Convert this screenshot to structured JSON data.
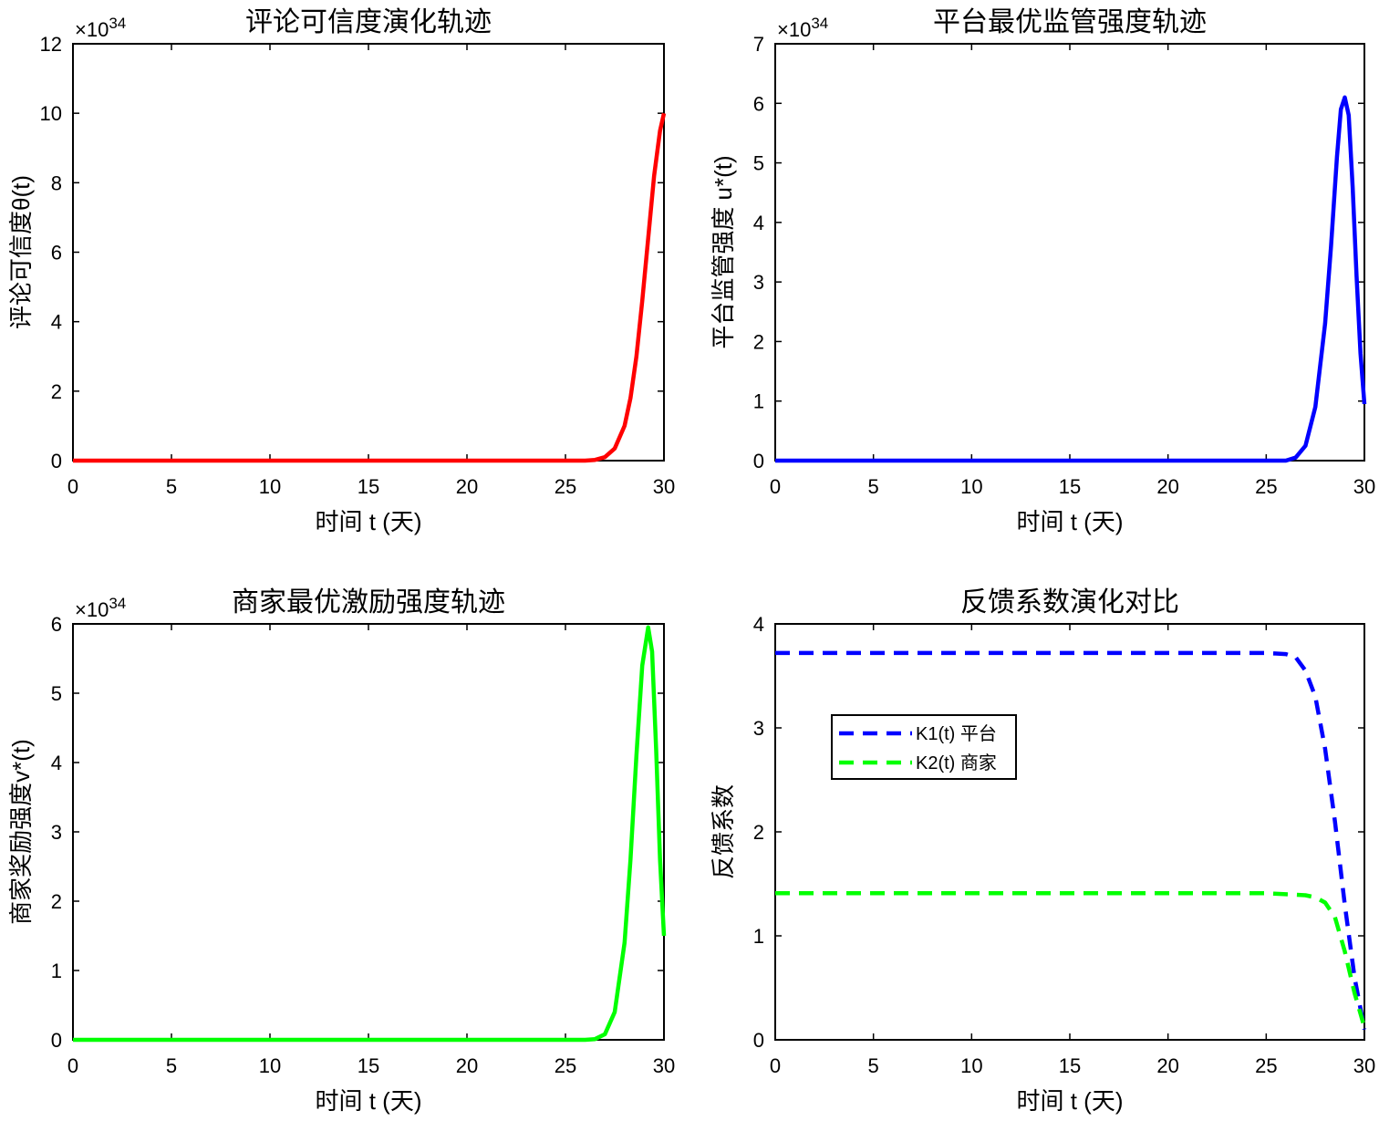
{
  "chart_data": [
    {
      "type": "line",
      "title": "评论可信度演化轨迹",
      "xlabel": "时间 t (天)",
      "ylabel": "评论可信度θ(t)",
      "xlim": [
        0,
        30
      ],
      "ylim": [
        0,
        12
      ],
      "exponent_label": "×10",
      "exponent_power": "34",
      "xticks": [
        0,
        5,
        10,
        15,
        20,
        25,
        30
      ],
      "yticks": [
        0,
        2,
        4,
        6,
        8,
        10,
        12
      ],
      "grid": false,
      "series": [
        {
          "color": "#ff0000",
          "dash": "none",
          "x": [
            0,
            5,
            10,
            15,
            20,
            25,
            26,
            26.5,
            27,
            27.5,
            28,
            28.3,
            28.6,
            28.9,
            29.2,
            29.5,
            29.8,
            30
          ],
          "y": [
            0,
            0,
            0,
            0,
            0,
            0,
            0,
            0.02,
            0.1,
            0.35,
            1.0,
            1.8,
            3.0,
            4.6,
            6.4,
            8.2,
            9.5,
            10.0
          ]
        }
      ]
    },
    {
      "type": "line",
      "title": "平台最优监管强度轨迹",
      "xlabel": "时间 t (天)",
      "ylabel": "平台监管强度 u*(t)",
      "xlim": [
        0,
        30
      ],
      "ylim": [
        0,
        7
      ],
      "exponent_label": "×10",
      "exponent_power": "34",
      "xticks": [
        0,
        5,
        10,
        15,
        20,
        25,
        30
      ],
      "yticks": [
        0,
        1,
        2,
        3,
        4,
        5,
        6,
        7
      ],
      "grid": false,
      "series": [
        {
          "color": "#0000ff",
          "dash": "none",
          "x": [
            0,
            5,
            10,
            15,
            20,
            25,
            26,
            26.5,
            27,
            27.5,
            28,
            28.3,
            28.6,
            28.8,
            29.0,
            29.2,
            29.4,
            29.6,
            29.8,
            30
          ],
          "y": [
            0,
            0,
            0,
            0,
            0,
            0,
            0,
            0.05,
            0.25,
            0.9,
            2.3,
            3.6,
            5.1,
            5.9,
            6.1,
            5.8,
            4.6,
            3.1,
            1.8,
            0.95
          ]
        }
      ]
    },
    {
      "type": "line",
      "title": "商家最优激励强度轨迹",
      "xlabel": "时间 t (天)",
      "ylabel": "商家奖励强度v*(t)",
      "xlim": [
        0,
        30
      ],
      "ylim": [
        0,
        6
      ],
      "exponent_label": "×10",
      "exponent_power": "34",
      "xticks": [
        0,
        5,
        10,
        15,
        20,
        25,
        30
      ],
      "yticks": [
        0,
        1,
        2,
        3,
        4,
        5,
        6
      ],
      "grid": false,
      "series": [
        {
          "color": "#00ff00",
          "dash": "none",
          "x": [
            0,
            5,
            10,
            15,
            20,
            25,
            26,
            26.5,
            27,
            27.5,
            28,
            28.3,
            28.6,
            28.9,
            29.2,
            29.4,
            29.6,
            29.8,
            30
          ],
          "y": [
            0,
            0,
            0,
            0,
            0,
            0,
            0,
            0.01,
            0.08,
            0.4,
            1.4,
            2.6,
            4.1,
            5.4,
            5.95,
            5.6,
            4.2,
            2.6,
            1.5
          ]
        }
      ]
    },
    {
      "type": "line",
      "title": "反馈系数演化对比",
      "xlabel": "时间 t (天)",
      "ylabel": "反馈系数",
      "xlim": [
        0,
        30
      ],
      "ylim": [
        0,
        4
      ],
      "xticks": [
        0,
        5,
        10,
        15,
        20,
        25,
        30
      ],
      "yticks": [
        0,
        1,
        2,
        3,
        4
      ],
      "grid": false,
      "legend_position": "upper-left",
      "series": [
        {
          "name": "K1(t) 平台",
          "color": "#0000ff",
          "dash": "dashed",
          "x": [
            0,
            5,
            10,
            15,
            20,
            25,
            26,
            26.5,
            27,
            27.5,
            28,
            28.5,
            29,
            29.5,
            30
          ],
          "y": [
            3.72,
            3.72,
            3.72,
            3.72,
            3.72,
            3.72,
            3.71,
            3.68,
            3.55,
            3.3,
            2.8,
            2.1,
            1.3,
            0.6,
            0.1
          ]
        },
        {
          "name": "K2(t) 商家",
          "color": "#00ff00",
          "dash": "dashed",
          "x": [
            0,
            5,
            10,
            15,
            20,
            25,
            26,
            27,
            27.5,
            28,
            28.5,
            29,
            29.5,
            30
          ],
          "y": [
            1.41,
            1.41,
            1.41,
            1.41,
            1.41,
            1.41,
            1.4,
            1.39,
            1.37,
            1.32,
            1.18,
            0.85,
            0.45,
            0.12
          ]
        }
      ]
    }
  ]
}
